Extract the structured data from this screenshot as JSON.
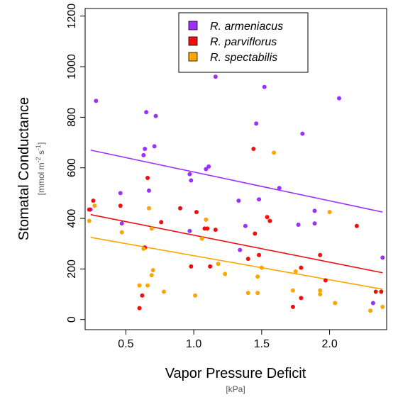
{
  "chart_data": {
    "type": "scatter",
    "title": "",
    "xlabel": "Vapor Pressure Deficit",
    "xunit": "[kPa]",
    "ylabel": "Stomatal Conductance",
    "yunit_parts": [
      "[mmol m",
      "-2",
      " s",
      "-1",
      "]"
    ],
    "xlim": [
      0.2,
      2.42
    ],
    "ylim": [
      -40,
      1230
    ],
    "xticks": [
      0.5,
      1.0,
      1.5,
      2.0
    ],
    "xtick_labels": [
      "0.5",
      "1.0",
      "1.5",
      "2.0"
    ],
    "yticks": [
      0,
      200,
      400,
      600,
      800,
      1000,
      1200
    ],
    "ytick_labels": [
      "0",
      "200",
      "400",
      "600",
      "800",
      "1000",
      "1200"
    ],
    "grid": false,
    "legend_position": "top-center",
    "series": [
      {
        "name": "R. armeniacus",
        "color": "#9B30FF",
        "fit": {
          "x": [
            0.24,
            2.39
          ],
          "y": [
            670,
            425
          ]
        },
        "points": [
          [
            0.24,
            435
          ],
          [
            0.28,
            865
          ],
          [
            0.46,
            500
          ],
          [
            0.47,
            380
          ],
          [
            0.63,
            650
          ],
          [
            0.64,
            675
          ],
          [
            0.65,
            820
          ],
          [
            0.67,
            510
          ],
          [
            0.71,
            685
          ],
          [
            0.72,
            805
          ],
          [
            0.97,
            575
          ],
          [
            0.97,
            350
          ],
          [
            0.98,
            550
          ],
          [
            1.09,
            595
          ],
          [
            1.11,
            605
          ],
          [
            1.16,
            960
          ],
          [
            1.33,
            470
          ],
          [
            1.34,
            275
          ],
          [
            1.38,
            370
          ],
          [
            1.46,
            775
          ],
          [
            1.48,
            475
          ],
          [
            1.52,
            920
          ],
          [
            1.63,
            520
          ],
          [
            1.77,
            375
          ],
          [
            1.8,
            735
          ],
          [
            1.89,
            430
          ],
          [
            1.89,
            380
          ],
          [
            2.07,
            875
          ],
          [
            2.32,
            65
          ],
          [
            2.39,
            245
          ]
        ]
      },
      {
        "name": "R. parviflorus",
        "color": "#EE1010",
        "fit": {
          "x": [
            0.24,
            2.39
          ],
          "y": [
            415,
            185
          ]
        },
        "points": [
          [
            0.23,
            435
          ],
          [
            0.26,
            470
          ],
          [
            0.46,
            450
          ],
          [
            0.6,
            45
          ],
          [
            0.62,
            95
          ],
          [
            0.64,
            285
          ],
          [
            0.66,
            560
          ],
          [
            0.76,
            385
          ],
          [
            0.9,
            440
          ],
          [
            0.98,
            210
          ],
          [
            1.02,
            425
          ],
          [
            1.08,
            360
          ],
          [
            1.1,
            360
          ],
          [
            1.12,
            210
          ],
          [
            1.16,
            355
          ],
          [
            1.4,
            240
          ],
          [
            1.44,
            675
          ],
          [
            1.45,
            340
          ],
          [
            1.48,
            255
          ],
          [
            1.54,
            405
          ],
          [
            1.56,
            390
          ],
          [
            1.73,
            50
          ],
          [
            1.79,
            85
          ],
          [
            1.79,
            205
          ],
          [
            1.93,
            255
          ],
          [
            1.97,
            155
          ],
          [
            2.2,
            370
          ],
          [
            2.34,
            110
          ],
          [
            2.38,
            110
          ]
        ]
      },
      {
        "name": "R. spectabilis",
        "color": "#FFA500",
        "fit": {
          "x": [
            0.24,
            2.39
          ],
          "y": [
            325,
            120
          ]
        },
        "points": [
          [
            0.23,
            390
          ],
          [
            0.27,
            450
          ],
          [
            0.47,
            345
          ],
          [
            0.6,
            135
          ],
          [
            0.63,
            280
          ],
          [
            0.66,
            135
          ],
          [
            0.67,
            440
          ],
          [
            0.69,
            175
          ],
          [
            0.69,
            360
          ],
          [
            0.7,
            195
          ],
          [
            0.78,
            110
          ],
          [
            1.01,
            95
          ],
          [
            1.06,
            320
          ],
          [
            1.09,
            395
          ],
          [
            1.18,
            220
          ],
          [
            1.23,
            180
          ],
          [
            1.4,
            105
          ],
          [
            1.47,
            105
          ],
          [
            1.47,
            170
          ],
          [
            1.5,
            205
          ],
          [
            1.59,
            660
          ],
          [
            1.73,
            115
          ],
          [
            1.75,
            190
          ],
          [
            1.93,
            100
          ],
          [
            1.93,
            115
          ],
          [
            2.0,
            425
          ],
          [
            2.04,
            65
          ],
          [
            2.3,
            35
          ],
          [
            2.39,
            50
          ]
        ]
      }
    ]
  }
}
